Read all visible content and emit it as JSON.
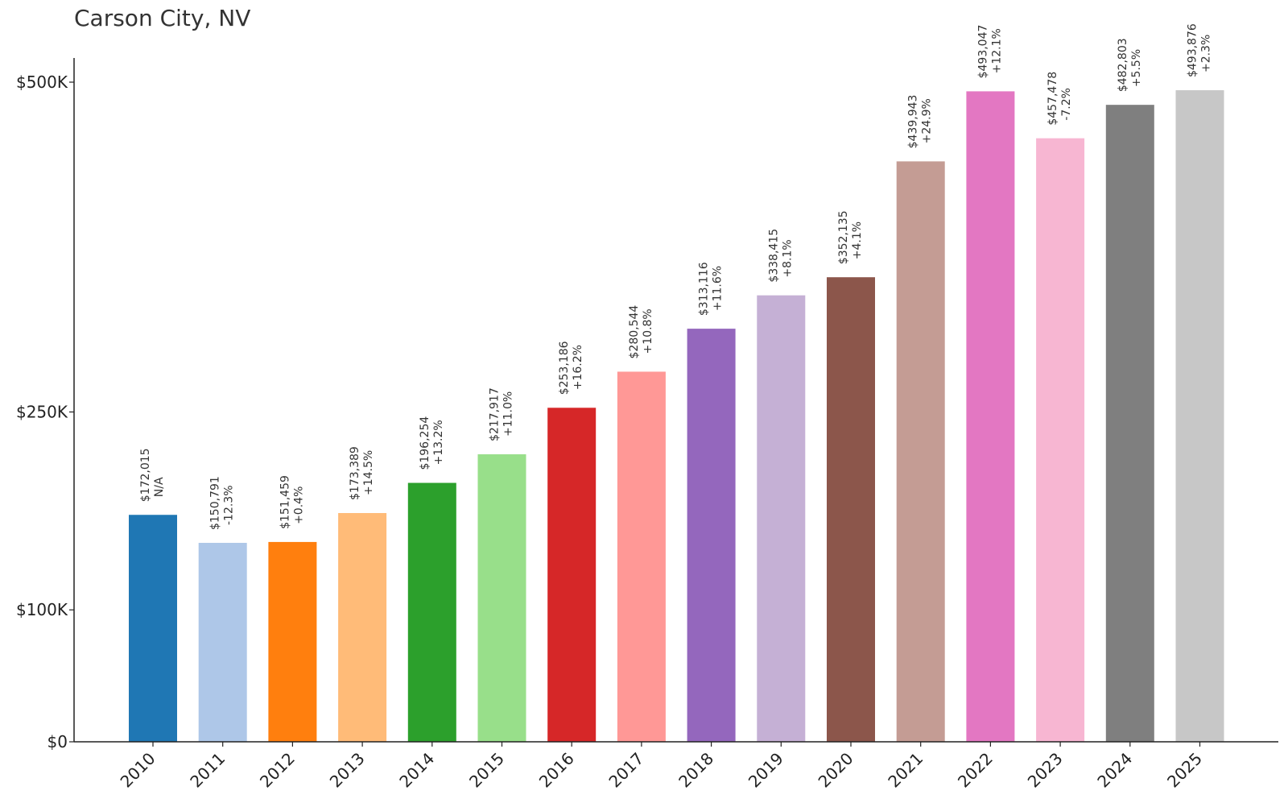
{
  "chart_data": {
    "type": "bar",
    "title": "Carson City, NV",
    "xlabel": "",
    "ylabel": "",
    "categories": [
      "2010",
      "2011",
      "2012",
      "2013",
      "2014",
      "2015",
      "2016",
      "2017",
      "2018",
      "2019",
      "2020",
      "2021",
      "2022",
      "2023",
      "2024",
      "2025"
    ],
    "values": [
      172015,
      150791,
      151459,
      173389,
      196254,
      217917,
      253186,
      280544,
      313116,
      338415,
      352135,
      439943,
      493047,
      457478,
      482803,
      493876
    ],
    "value_labels": [
      "$172,015",
      "$150,791",
      "$151,459",
      "$173,389",
      "$196,254",
      "$217,917",
      "$253,186",
      "$280,544",
      "$313,116",
      "$338,415",
      "$352,135",
      "$439,943",
      "$493,047",
      "$457,478",
      "$482,803",
      "$493,876"
    ],
    "change_labels": [
      "N/A",
      "-12.3%",
      "+0.4%",
      "+14.5%",
      "+13.2%",
      "+11.0%",
      "+16.2%",
      "+10.8%",
      "+11.6%",
      "+8.1%",
      "+4.1%",
      "+24.9%",
      "+12.1%",
      "-7.2%",
      "+5.5%",
      "+2.3%"
    ],
    "colors": [
      "#1f77b4",
      "#aec7e8",
      "#ff7f0e",
      "#ffbb78",
      "#2ca02c",
      "#98df8a",
      "#d62728",
      "#ff9896",
      "#9467bd",
      "#c5b0d5",
      "#8c564b",
      "#c49c94",
      "#e377c2",
      "#f7b6d2",
      "#7f7f7f",
      "#c7c7c7"
    ],
    "y_ticks": [
      0,
      100000,
      250000,
      500000
    ],
    "y_tick_labels": [
      "$0",
      "$100K",
      "$250K",
      "$500K"
    ],
    "ylim": [
      0,
      518000
    ],
    "grid": false,
    "legend": "none"
  }
}
